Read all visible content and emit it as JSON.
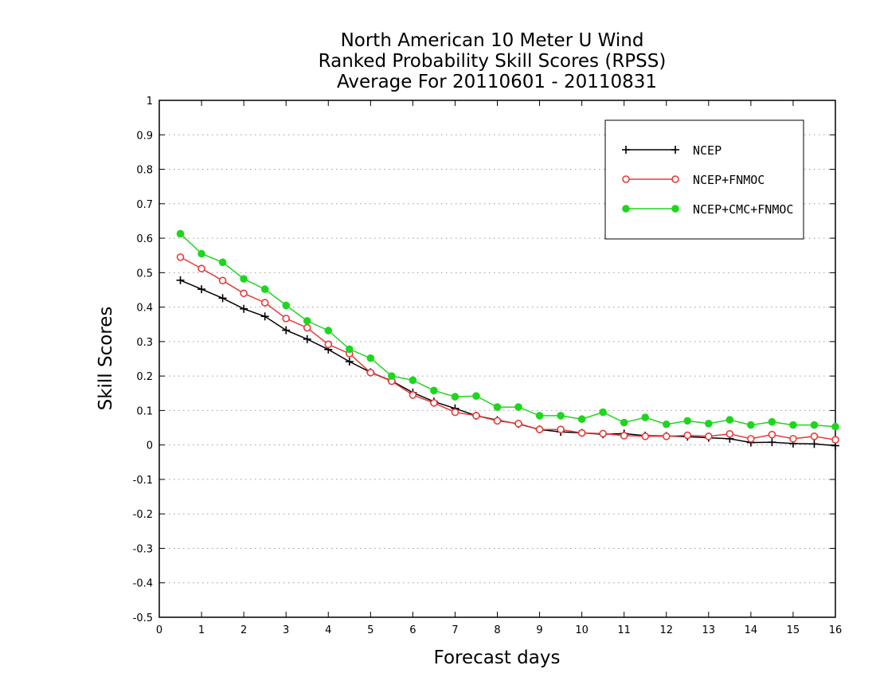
{
  "chart_data": {
    "type": "line",
    "title": [
      "North American 10 Meter U Wind",
      "Ranked Probability Skill Scores (RPSS)",
      "Average For 20110601 - 20110831"
    ],
    "xlabel": "Forecast days",
    "ylabel": "Skill Scores",
    "xlim": [
      0,
      16
    ],
    "ylim": [
      -0.5,
      1
    ],
    "xticks": [
      "0",
      "1",
      "2",
      "3",
      "4",
      "5",
      "6",
      "7",
      "8",
      "9",
      "10",
      "11",
      "12",
      "13",
      "14",
      "15",
      "16"
    ],
    "yticks": [
      "-0.5",
      "-0.4",
      "-0.3",
      "-0.2",
      "-0.1",
      "0",
      "0.1",
      "0.2",
      "0.3",
      "0.4",
      "0.5",
      "0.6",
      "0.7",
      "0.8",
      "0.9",
      "1"
    ],
    "grid": true,
    "legend_position": "top-right",
    "x": [
      0.5,
      1,
      1.5,
      2,
      2.5,
      3,
      3.5,
      4,
      4.5,
      5,
      5.5,
      6,
      6.5,
      7,
      7.5,
      8,
      8.5,
      9,
      9.5,
      10,
      10.5,
      11,
      11.5,
      12,
      12.5,
      13,
      13.5,
      14,
      14.5,
      15,
      15.5,
      16
    ],
    "series": [
      {
        "name": "NCEP",
        "color": "#000000",
        "marker": "plus",
        "values": [
          0.478,
          0.452,
          0.426,
          0.395,
          0.373,
          0.333,
          0.307,
          0.277,
          0.242,
          0.211,
          0.186,
          0.152,
          0.126,
          0.106,
          0.085,
          0.072,
          0.061,
          0.045,
          0.038,
          0.035,
          0.031,
          0.033,
          0.027,
          0.026,
          0.024,
          0.021,
          0.018,
          0.007,
          0.008,
          0.004,
          0.003,
          -0.002
        ]
      },
      {
        "name": "NCEP+FNMOC",
        "color": "#e83a3a",
        "marker": "open-circle",
        "values": [
          0.545,
          0.512,
          0.477,
          0.44,
          0.413,
          0.367,
          0.34,
          0.292,
          0.265,
          0.21,
          0.185,
          0.145,
          0.122,
          0.095,
          0.085,
          0.07,
          0.062,
          0.045,
          0.045,
          0.035,
          0.033,
          0.027,
          0.025,
          0.025,
          0.028,
          0.025,
          0.032,
          0.018,
          0.03,
          0.018,
          0.025,
          0.015
        ]
      },
      {
        "name": "NCEP+CMC+FNMOC",
        "color": "#1ed61e",
        "marker": "filled-circle",
        "values": [
          0.613,
          0.555,
          0.53,
          0.482,
          0.452,
          0.405,
          0.36,
          0.332,
          0.278,
          0.252,
          0.2,
          0.188,
          0.158,
          0.14,
          0.142,
          0.11,
          0.11,
          0.085,
          0.085,
          0.075,
          0.095,
          0.065,
          0.08,
          0.06,
          0.07,
          0.062,
          0.073,
          0.058,
          0.067,
          0.058,
          0.058,
          0.053
        ]
      }
    ]
  }
}
